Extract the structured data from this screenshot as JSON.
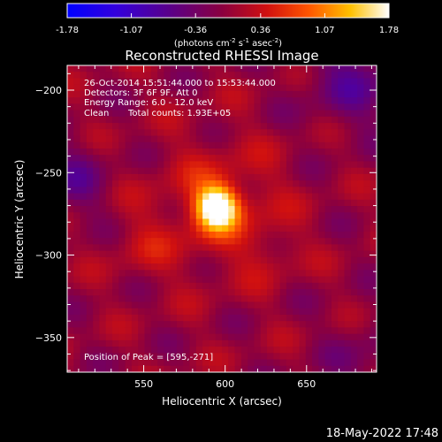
{
  "colorbar": {
    "ticks": [
      "-1.78",
      "-1.07",
      "-0.36",
      "0.36",
      "1.07",
      "1.78"
    ],
    "range": [
      -1.78,
      1.78
    ],
    "unit_main": "(photons cm",
    "unit_sup1": "-2",
    "unit_mid": " s",
    "unit_sup2": "-1",
    "unit_mid2": " asec",
    "unit_sup3": "-2",
    "unit_end": ")"
  },
  "chart_data": {
    "type": "heatmap",
    "title": "Reconstructed RHESSI Image",
    "xlabel": "Heliocentric X (arcsec)",
    "ylabel": "Heliocentric Y (arcsec)",
    "xlim": [
      503,
      693
    ],
    "ylim": [
      -371,
      -185
    ],
    "xticks": [
      550,
      600,
      650
    ],
    "yticks": [
      -200,
      -250,
      -300,
      -350
    ],
    "peak": {
      "x": 595,
      "y": -271,
      "value": 1.78
    },
    "colormap": "rhessi-thermal",
    "notes": [
      "26-Oct-2014 15:51:44.000 to 15:53:44.000",
      "Detectors: 3F 6F 9F, Att 0",
      "Energy Range: 6.0 - 12.0 keV"
    ],
    "clean_label": "Clean",
    "total_counts_label": "Total counts: 1.93E+05",
    "peak_label": "Position of Peak = [595,-271]"
  },
  "footer": {
    "timestamp": "18-May-2022 17:48"
  }
}
